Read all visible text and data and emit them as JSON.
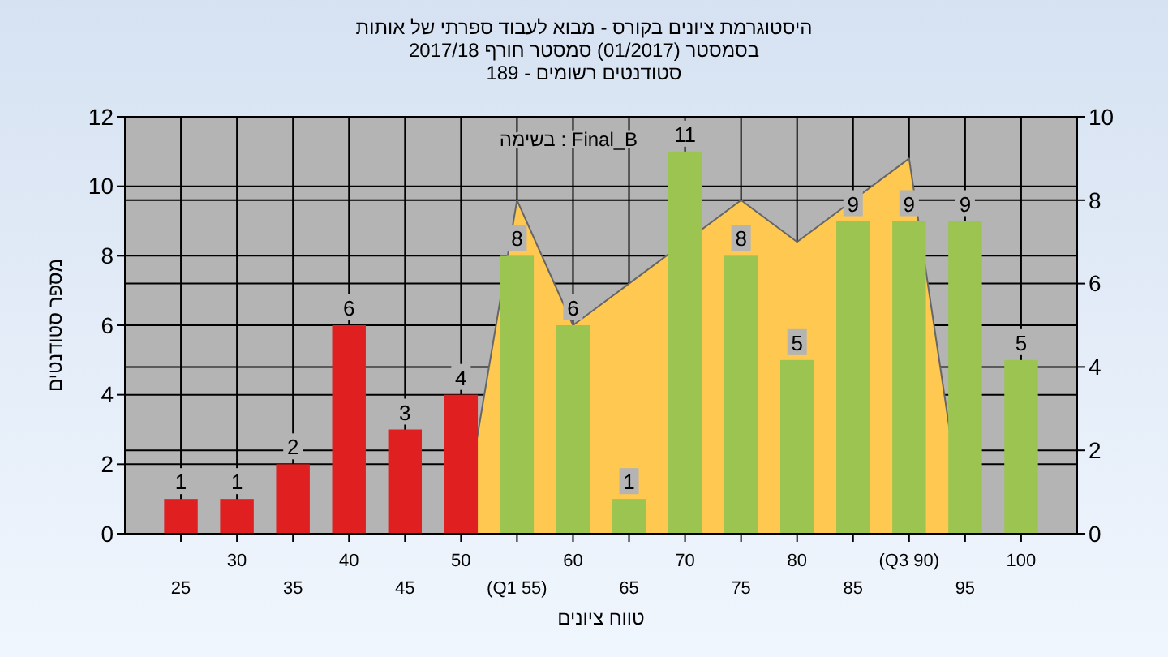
{
  "chart_data": {
    "type": "bar",
    "title": "היסטוגרמת ציונים בקורס - מבוא לעבוד ספרתי של אותות",
    "subtitle": "בסמסטר (01/2017) סמסטר חורף 2017/18\nסטודנטים רשומים - 189",
    "xlabel": "טווח ציונים",
    "ylabel": "מספר סטודנטים",
    "annotations": [
      "בשימה : Final_B"
    ],
    "categories": [
      "25",
      "30",
      "35",
      "40",
      "45",
      "50",
      "(Q1 55)",
      "60",
      "65",
      "70",
      "75",
      "80",
      "85",
      "(Q3 90)",
      "95",
      "100"
    ],
    "series": [
      {
        "type": "area",
        "axis": "y2",
        "color": "#ffc850",
        "values": [
          0,
          0,
          0,
          0,
          0,
          0,
          8,
          5,
          6,
          null,
          8,
          7,
          null,
          9,
          0,
          0
        ]
      },
      {
        "values": [
          1,
          1,
          2,
          6,
          3,
          4,
          8,
          6,
          1,
          11,
          8,
          5,
          9,
          9,
          9,
          5
        ],
        "value_labels": [
          "1",
          "1",
          "2",
          "6",
          "3",
          "4",
          "8",
          "6",
          "1",
          "11",
          "8",
          "5",
          "9",
          "9",
          "9",
          "5"
        ],
        "colors": [
          "#e02020",
          "#e02020",
          "#e02020",
          "#e02020",
          "#e02020",
          "#e02020",
          "#9cc450",
          "#9cc450",
          "#9cc450",
          "#9cc450",
          "#9cc450",
          "#9cc450",
          "#9cc450",
          "#9cc450",
          "#9cc450",
          "#9cc450"
        ]
      }
    ],
    "ylim": [
      0,
      12
    ],
    "yticks": [
      0,
      2,
      4,
      6,
      8,
      10,
      12
    ],
    "y2lim": [
      0,
      10
    ],
    "y2ticks": [
      0,
      2,
      4,
      6,
      8,
      10
    ],
    "grid": true
  }
}
